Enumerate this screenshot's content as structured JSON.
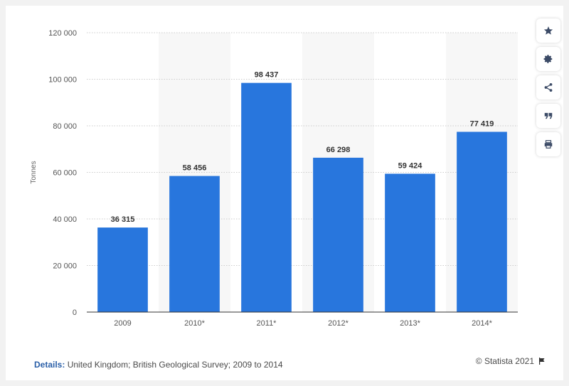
{
  "chart_data": {
    "type": "bar",
    "title": "",
    "xlabel": "",
    "ylabel": "Tonnes",
    "categories": [
      "2009",
      "2010*",
      "2011*",
      "2012*",
      "2013*",
      "2014*"
    ],
    "values": [
      36315,
      58456,
      98437,
      66298,
      59424,
      77419
    ],
    "value_labels": [
      "36 315",
      "58 456",
      "98 437",
      "66 298",
      "59 424",
      "77 419"
    ],
    "ylim": [
      0,
      120000
    ],
    "yticks": [
      0,
      20000,
      40000,
      60000,
      80000,
      100000,
      120000
    ],
    "ytick_labels": [
      "0",
      "20 000",
      "40 000",
      "60 000",
      "80 000",
      "100 000",
      "120 000"
    ],
    "grid": true,
    "bar_color": "#2876dd",
    "band_color": "#f7f7f7"
  },
  "toolbar": {
    "items": [
      {
        "name": "bookmark-button",
        "icon": "star-icon"
      },
      {
        "name": "settings-button",
        "icon": "gear-icon"
      },
      {
        "name": "share-button",
        "icon": "share-icon"
      },
      {
        "name": "cite-button",
        "icon": "quote-icon"
      },
      {
        "name": "print-button",
        "icon": "print-icon"
      }
    ]
  },
  "footer": {
    "details_label": "Details:",
    "details_text": "United Kingdom; British Geological Survey; 2009 to 2014",
    "credit": "© Statista 2021",
    "flag_icon": "flag-icon"
  }
}
